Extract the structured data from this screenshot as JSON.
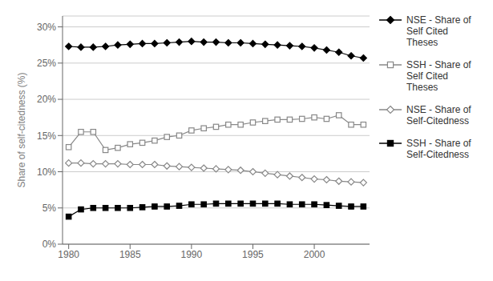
{
  "chart_data": {
    "type": "line",
    "ylabel": "Share of self-citedness (%)",
    "x": [
      1980,
      1981,
      1982,
      1983,
      1984,
      1985,
      1986,
      1987,
      1988,
      1989,
      1990,
      1991,
      1992,
      1993,
      1994,
      1995,
      1996,
      1997,
      1998,
      1999,
      2000,
      2001,
      2002,
      2003,
      2004
    ],
    "series": [
      {
        "name": "NSE - Share of\nSelf Cited\nTheses",
        "color": "#000000",
        "marker": "diamond",
        "values": [
          27.3,
          27.2,
          27.2,
          27.3,
          27.5,
          27.6,
          27.7,
          27.7,
          27.8,
          27.9,
          28.0,
          27.9,
          27.9,
          27.8,
          27.8,
          27.7,
          27.6,
          27.5,
          27.4,
          27.3,
          27.1,
          26.8,
          26.5,
          26.0,
          25.7
        ]
      },
      {
        "name": "SSH - Share of\nSelf Cited\nTheses",
        "color": "#888888",
        "marker": "square_open",
        "values": [
          13.4,
          15.5,
          15.5,
          13.0,
          13.3,
          13.8,
          14.0,
          14.3,
          14.8,
          15.0,
          15.7,
          16.0,
          16.2,
          16.5,
          16.5,
          16.8,
          17.0,
          17.2,
          17.2,
          17.3,
          17.5,
          17.3,
          17.8,
          16.5,
          16.5
        ]
      },
      {
        "name": "NSE - Share of\nSelf-Citedness",
        "color": "#888888",
        "marker": "diamond_open",
        "values": [
          11.2,
          11.2,
          11.1,
          11.1,
          11.1,
          11.0,
          11.0,
          11.0,
          10.8,
          10.7,
          10.6,
          10.5,
          10.4,
          10.3,
          10.2,
          10.0,
          9.8,
          9.6,
          9.4,
          9.2,
          9.0,
          8.9,
          8.7,
          8.6,
          8.5
        ]
      },
      {
        "name": "SSH - Share of\nSelf-Citedness",
        "color": "#000000",
        "marker": "square",
        "values": [
          3.8,
          4.8,
          5.0,
          5.0,
          5.0,
          5.0,
          5.1,
          5.2,
          5.2,
          5.3,
          5.5,
          5.5,
          5.6,
          5.6,
          5.6,
          5.6,
          5.6,
          5.6,
          5.5,
          5.5,
          5.5,
          5.4,
          5.3,
          5.2,
          5.2
        ]
      }
    ],
    "xlim": [
      1979.5,
      2004.5
    ],
    "xticks": [
      1980,
      1985,
      1990,
      1995,
      2000
    ],
    "ylim": [
      0,
      31.5
    ],
    "yticks": [
      {
        "value": 0,
        "label": "0%"
      },
      {
        "value": 5,
        "label": "5%"
      },
      {
        "value": 10,
        "label": "10%"
      },
      {
        "value": 15,
        "label": "15%"
      },
      {
        "value": 20,
        "label": "20%"
      },
      {
        "value": 25,
        "label": "25%"
      },
      {
        "value": 30,
        "label": "30%"
      }
    ],
    "grid": true,
    "legend": "right"
  }
}
